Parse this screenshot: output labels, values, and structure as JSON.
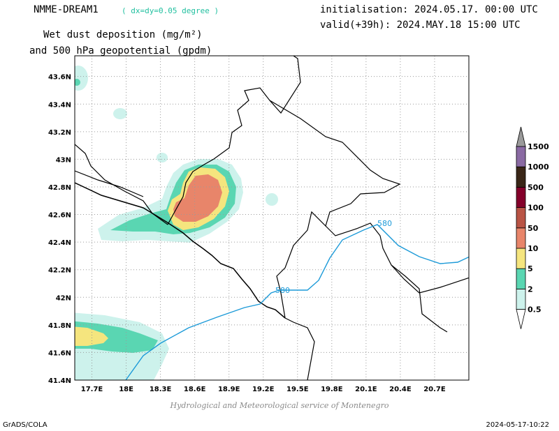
{
  "header": {
    "model": "NMME-DREAM1",
    "resolution": "( dx=dy=0.05 degree )",
    "variable_line1": "Wet dust deposition (mg/m²)",
    "variable_line2": "and 500 hPa geopotential (gpdm)",
    "init": "initialisation: 2024.05.17. 00:00 UTC",
    "valid": "valid(+39h): 2024.MAY.18 15:00 UTC"
  },
  "map": {
    "lon_range": [
      17.55,
      21.0
    ],
    "lat_range": [
      41.4,
      43.75
    ],
    "x_ticks": [
      "17.7E",
      "18E",
      "18.3E",
      "18.6E",
      "18.9E",
      "19.2E",
      "19.5E",
      "19.8E",
      "20.1E",
      "20.4E",
      "20.7E"
    ],
    "x_tick_values": [
      17.7,
      18.0,
      18.3,
      18.6,
      18.9,
      19.2,
      19.5,
      19.8,
      20.1,
      20.4,
      20.7
    ],
    "y_ticks": [
      "41.4N",
      "41.6N",
      "41.8N",
      "42N",
      "42.2N",
      "42.4N",
      "42.6N",
      "42.8N",
      "43N",
      "43.2N",
      "43.4N",
      "43.6N"
    ],
    "y_tick_values": [
      41.4,
      41.6,
      41.8,
      42.0,
      42.2,
      42.4,
      42.6,
      42.8,
      43.0,
      43.2,
      43.4,
      43.6
    ],
    "contour_label": "580",
    "contour_color": "#1c9ad8"
  },
  "colorbar": {
    "levels": [
      "0.5",
      "2",
      "5",
      "10",
      "50",
      "100",
      "500",
      "1000",
      "1500"
    ],
    "colors": [
      "#cdf2ec",
      "#5ad6b2",
      "#f5e57e",
      "#e8856a",
      "#b95445",
      "#84002a",
      "#3a2617",
      "#8a6aa3",
      "#9a9a9a"
    ]
  },
  "footer": {
    "credit": "Hydrological and Meteorological service of Montenegro",
    "left": "GrADS/COLA",
    "right": "2024-05-17-10:22"
  }
}
